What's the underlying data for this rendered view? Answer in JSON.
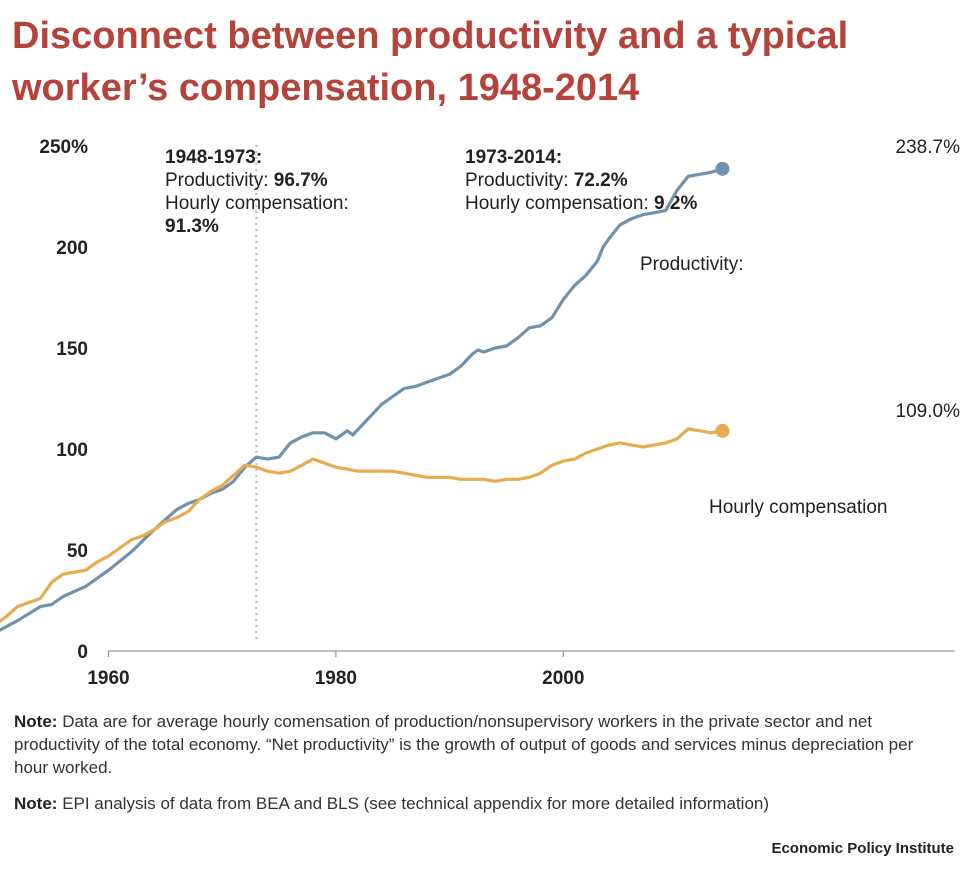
{
  "title": {
    "line1": "Disconnect between productivity and a typical",
    "line2": "worker’s compensation, 1948-2014"
  },
  "chart_data": {
    "type": "line",
    "title": "Disconnect between productivity and a typical worker’s compensation, 1948-2014",
    "xlabel": "",
    "ylabel": "",
    "xlim": [
      1948,
      2014
    ],
    "ylim": [
      0,
      250
    ],
    "xticks": [
      1960,
      1980,
      2000
    ],
    "xtick_labels": [
      "1960",
      "1980",
      "2000"
    ],
    "yticks": [
      0,
      50,
      100,
      150,
      200,
      250
    ],
    "ytick_labels": [
      "0",
      "50",
      "100",
      "150",
      "200",
      "250%"
    ],
    "grid": false,
    "reference_line": {
      "x": 1973,
      "style": "dotted"
    },
    "series": [
      {
        "name": "Productivity:",
        "color": "#6f93ad",
        "end_label": "238.7%",
        "x": [
          1949,
          1950,
          1952,
          1954,
          1955,
          1956,
          1958,
          1960,
          1962,
          1964,
          1966,
          1967,
          1968,
          1969,
          1970,
          1971,
          1972,
          1973,
          1974,
          1975,
          1976,
          1977,
          1978,
          1979,
          1980,
          1981,
          1981.5,
          1982,
          1983,
          1984,
          1985,
          1986,
          1987,
          1988,
          1989,
          1990,
          1991,
          1992,
          1992.5,
          1993,
          1994,
          1995,
          1996,
          1997,
          1998,
          1999,
          2000,
          2001,
          2002,
          2003,
          2003.5,
          2004,
          2005,
          2006,
          2007,
          2008,
          2009,
          2010,
          2011,
          2012,
          2013,
          2014
        ],
        "values": [
          3,
          9,
          15,
          22,
          23,
          27,
          32,
          40,
          49,
          60,
          70,
          73,
          75,
          78,
          80,
          84,
          91,
          96,
          95,
          96,
          103,
          106,
          108,
          108,
          105,
          109,
          107,
          110,
          116,
          122,
          126,
          130,
          131,
          133,
          135,
          137,
          141,
          147,
          149,
          148,
          150,
          151,
          155,
          160,
          161,
          165,
          174,
          181,
          186,
          193,
          200,
          204,
          211,
          214,
          216,
          217,
          218,
          228,
          235,
          236,
          237,
          238.7
        ]
      },
      {
        "name": "Hourly compensation",
        "color": "#e8ac4e",
        "end_label": "109.0%",
        "x": [
          1948,
          1949,
          1950,
          1951,
          1952,
          1953,
          1954,
          1955,
          1956,
          1957,
          1958,
          1959,
          1960,
          1961,
          1962,
          1963,
          1964,
          1965,
          1966,
          1967,
          1968,
          1969,
          1970,
          1971,
          1972,
          1973,
          1974,
          1975,
          1976,
          1977,
          1978,
          1979,
          1980,
          1981,
          1982,
          1983,
          1984,
          1985,
          1986,
          1987,
          1988,
          1989,
          1990,
          1991,
          1992,
          1993,
          1994,
          1995,
          1996,
          1997,
          1998,
          1999,
          2000,
          2001,
          2002,
          2003,
          2004,
          2005,
          2006,
          2007,
          2008,
          2009,
          2010,
          2011,
          2012,
          2013,
          2014
        ],
        "values": [
          3,
          10,
          13,
          17,
          22,
          24,
          26,
          34,
          38,
          39,
          40,
          44,
          47,
          51,
          55,
          57,
          60,
          64,
          66,
          69,
          75,
          79,
          82,
          87,
          92,
          91,
          89,
          88,
          89,
          92,
          95,
          93,
          91,
          90,
          89,
          89,
          89,
          89,
          88,
          87,
          86,
          86,
          86,
          85,
          85,
          85,
          84,
          85,
          85,
          86,
          88,
          92,
          94,
          95,
          98,
          100,
          102,
          103,
          102,
          101,
          102,
          103,
          105,
          110,
          109,
          108,
          109
        ]
      }
    ],
    "annotations": [
      {
        "period": "1948-1973:",
        "prod_label": "Productivity: ",
        "prod_value": "96.7%",
        "comp_label": "Hourly compensation:",
        "comp_value": "91.3%"
      },
      {
        "period": "1973-2014:",
        "prod_label": "Productivity: ",
        "prod_value": "72.2%",
        "comp_label": "Hourly compensation: ",
        "comp_value": "9.2%"
      }
    ]
  },
  "notes": [
    {
      "label": "Note:",
      "text": "Data are for average hourly comensation of production/nonsupervisory workers in the private sector and net productivity of the total economy. “Net productivity” is the growth of output of goods and services minus depreciation per hour worked."
    },
    {
      "label": "Note:",
      "text": "EPI analysis of data from BEA and BLS (see technical appendix for more detailed information)"
    }
  ],
  "source": "Economic Policy Institute"
}
